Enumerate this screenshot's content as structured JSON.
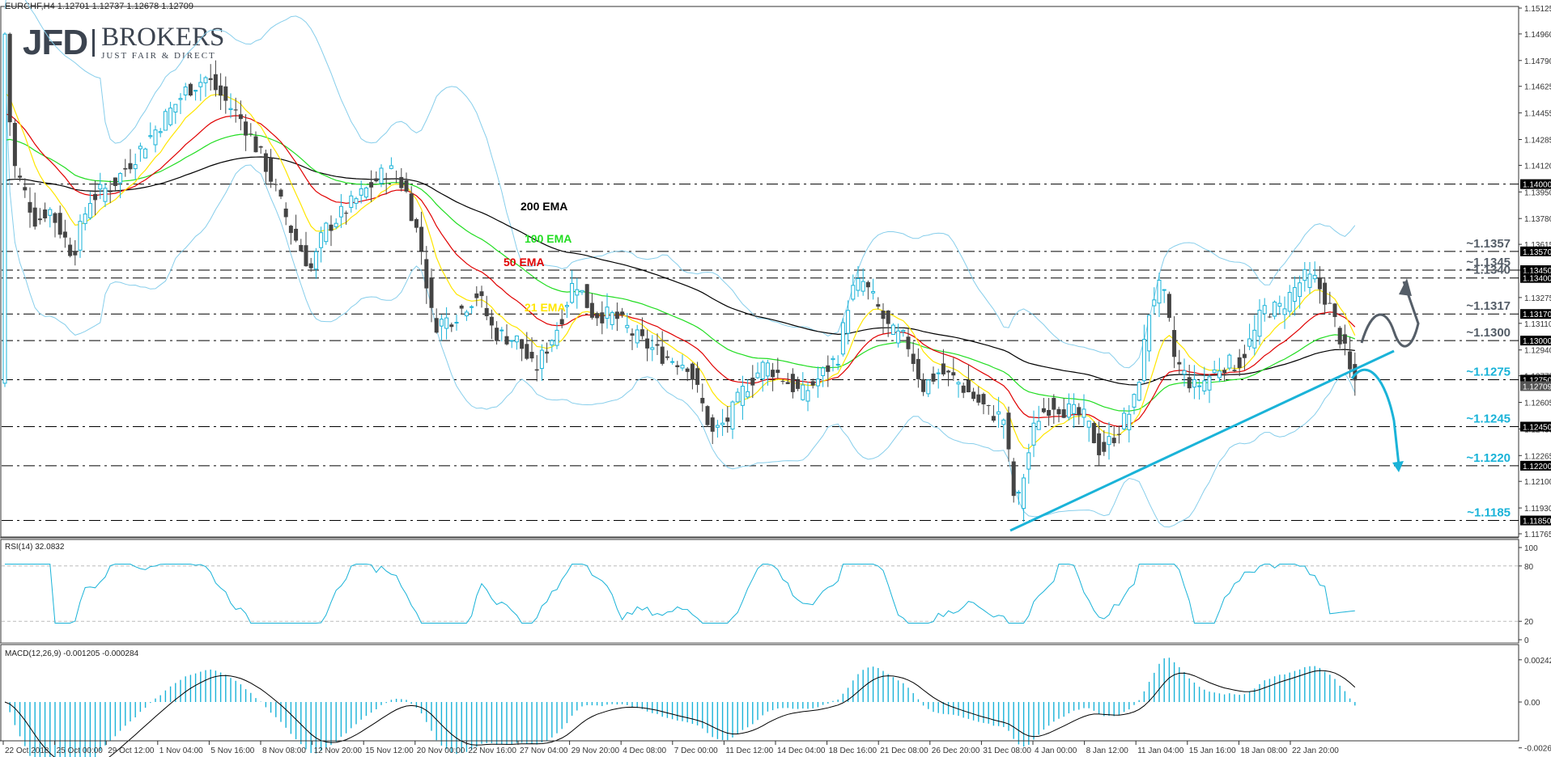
{
  "header": {
    "symbol_line": "EURCHF,H4  1.12701 1.12737 1.12678 1.12709"
  },
  "logo": {
    "brand": "JFD",
    "name": "BROKERS",
    "tagline": "JUST FAIR & DIRECT"
  },
  "indicators": {
    "rsi_label": "RSI(14) 32.0832",
    "macd_label": "MACD(12,26,9) -0.001205 -0.000284"
  },
  "colors": {
    "bull_candle": "#1ab3d8",
    "bear_candle": "#444444",
    "ema21": "#ffe600",
    "ema50": "#e00000",
    "ema100": "#22dd22",
    "ema200": "#000000",
    "bollinger": "#87ceeb",
    "trendline": "#1ab3d8",
    "label_dark": "#555e68",
    "label_blue": "#1ab3d8"
  },
  "chart_data": [
    {
      "type": "candlestick",
      "title": "EURCHF, H4",
      "ohlc_last": {
        "open": 1.12701,
        "high": 1.12737,
        "low": 1.12678,
        "close": 1.12709
      },
      "ylim": [
        1.11765,
        1.15125
      ],
      "y_ticks": [
        "1.15125",
        "1.14960",
        "1.14790",
        "1.14625",
        "1.14455",
        "1.14285",
        "1.14120",
        "1.13950",
        "1.13780",
        "1.13615",
        "1.13450",
        "1.13275",
        "1.13110",
        "1.12940",
        "1.12775",
        "1.12605",
        "1.12435",
        "1.12265",
        "1.12100",
        "1.11930",
        "1.11765"
      ],
      "highlighted_levels": [
        "1.14000",
        "1.13570",
        "1.13450",
        "1.13400",
        "1.13170",
        "1.13000",
        "1.12750",
        "1.12450",
        "1.12200",
        "1.11850"
      ],
      "current_price": "1.12709",
      "x_ticks": [
        "22 Oct 2018",
        "25 Oct 00:00",
        "29 Oct 12:00",
        "1 Nov 04:00",
        "5 Nov 16:00",
        "8 Nov 08:00",
        "12 Nov 20:00",
        "15 Nov 12:00",
        "20 Nov 00:00",
        "22 Nov 16:00",
        "27 Nov 04:00",
        "29 Nov 20:00",
        "4 Dec 08:00",
        "7 Dec 00:00",
        "11 Dec 12:00",
        "14 Dec 04:00",
        "18 Dec 16:00",
        "21 Dec 08:00",
        "26 Dec 20:00",
        "31 Dec 08:00",
        "4 Jan 00:00",
        "8 Jan 12:00",
        "11 Jan 04:00",
        "15 Jan 16:00",
        "18 Jan 08:00",
        "22 Jan 20:00"
      ],
      "series_labels": [
        "200 EMA",
        "100 EMA",
        "50 EMA",
        "21 EMA"
      ],
      "annotations": [
        {
          "text": "~1.1357",
          "level": 1.1357,
          "color": "dark"
        },
        {
          "text": "~1.1345",
          "level": 1.1345,
          "color": "dark"
        },
        {
          "text": "~1.1340",
          "level": 1.134,
          "color": "dark"
        },
        {
          "text": "~1.1317",
          "level": 1.1317,
          "color": "dark"
        },
        {
          "text": "~1.1300",
          "level": 1.13,
          "color": "dark"
        },
        {
          "text": "~1.1275",
          "level": 1.1275,
          "color": "blue"
        },
        {
          "text": "~1.1245",
          "level": 1.1245,
          "color": "blue"
        },
        {
          "text": "~1.1220",
          "level": 1.122,
          "color": "blue"
        },
        {
          "text": "~1.1185",
          "level": 1.1185,
          "color": "blue"
        }
      ],
      "trendline": {
        "from": {
          "x": "31 Dec 08:00",
          "y": 1.1182
        },
        "to": {
          "x": "24 Jan",
          "y": 1.1296
        }
      },
      "scenario_arrows": [
        "bullish: bounce above 1.1300 toward 1.1340",
        "bearish: drop from 1.1275 toward 1.1220"
      ]
    },
    {
      "type": "line",
      "title": "RSI(14)",
      "value": 32.0832,
      "ylim": [
        0,
        100
      ],
      "y_ticks": [
        "100",
        "80",
        "20",
        "0"
      ],
      "levels": [
        80,
        20
      ]
    },
    {
      "type": "bar",
      "title": "MACD(12,26,9)",
      "main": -0.001205,
      "signal": -0.000284,
      "y_ticks": [
        "0.002424",
        "0.00",
        "-0.002633"
      ]
    }
  ]
}
